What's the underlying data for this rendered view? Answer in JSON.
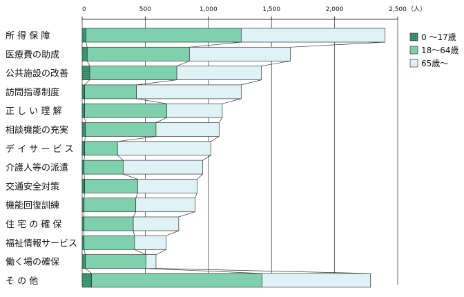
{
  "chart_data": {
    "type": "bar",
    "stacked": true,
    "orientation": "horizontal",
    "title": "",
    "xlabel": "",
    "ylabel": "",
    "unit_label": "（人）",
    "xlim": [
      0,
      2500
    ],
    "x_ticks": [
      0,
      500,
      1000,
      1500,
      2000,
      2500
    ],
    "x_tick_labels": [
      "0",
      "500",
      "1,000",
      "1,500",
      "2,000",
      "2,500"
    ],
    "grid": true,
    "legend_position": "right",
    "categories": [
      "所得保障",
      "医療費の助成",
      "公共施設の改善",
      "訪問指導制度",
      "正しい理解",
      "相談機能の充実",
      "デイサービス",
      "介護人等の派遣",
      "交通安全対策",
      "機能回復訓練",
      "住宅の確保",
      "福祉情報サービス",
      "働く場の確保",
      "その他"
    ],
    "category_display": [
      "所 得 保 障",
      "医療費の助成",
      "公共施設の改善",
      "訪問指導制度",
      "正 し い 理 解",
      "相談機能の充実",
      "デ イ サ ー ビ ス",
      "介護人等の派遣",
      "交通安全対策",
      "機能回復訓練",
      "住 宅 の 確 保",
      "福祉情報サービス",
      "働く場の確保",
      "そ の 他"
    ],
    "series": [
      {
        "name": "0 ～17歳",
        "color": "#3f9f7a",
        "pattern": "dotted",
        "values": [
          30,
          40,
          60,
          20,
          20,
          25,
          20,
          15,
          20,
          15,
          15,
          15,
          25,
          75
        ]
      },
      {
        "name": "18～64歳",
        "color": "#7fd1ad",
        "values": [
          1230,
          810,
          690,
          410,
          650,
          560,
          260,
          310,
          420,
          410,
          390,
          400,
          480,
          1350
        ]
      },
      {
        "name": "65歳～",
        "color": "#dff3f6",
        "values": [
          1140,
          800,
          670,
          830,
          440,
          500,
          740,
          630,
          470,
          470,
          360,
          250,
          80,
          860
        ]
      }
    ]
  }
}
